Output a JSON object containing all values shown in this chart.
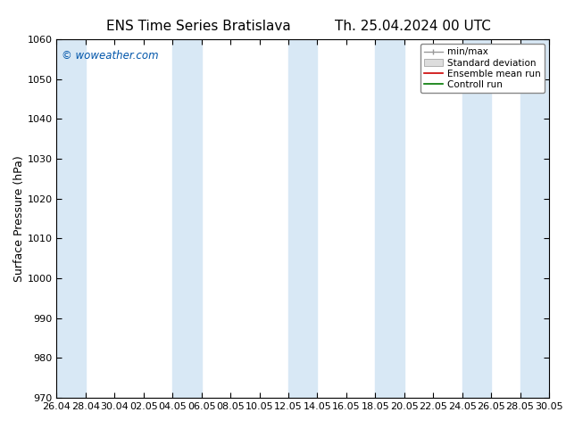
{
  "title_left": "ENS Time Series Bratislava",
  "title_right": "Th. 25.04.2024 00 UTC",
  "ylabel": "Surface Pressure (hPa)",
  "ylim": [
    970,
    1060
  ],
  "yticks": [
    970,
    980,
    990,
    1000,
    1010,
    1020,
    1030,
    1040,
    1050,
    1060
  ],
  "x_labels": [
    "26.04",
    "28.04",
    "30.04",
    "02.05",
    "04.05",
    "06.05",
    "08.05",
    "10.05",
    "12.05",
    "14.05",
    "16.05",
    "18.05",
    "20.05",
    "22.05",
    "24.05",
    "26.05",
    "28.05",
    "30.05"
  ],
  "watermark": "© woweather.com",
  "watermark_color": "#0055aa",
  "bg_color": "#ffffff",
  "plot_bg_color": "#ffffff",
  "band_color": "#d8e8f5",
  "band_indices": [
    0,
    4,
    8,
    12,
    14,
    16
  ],
  "legend_labels": [
    "min/max",
    "Standard deviation",
    "Ensemble mean run",
    "Controll run"
  ],
  "legend_colors_line": [
    "#999999",
    "#cccccc",
    "#cc0000",
    "#007700"
  ],
  "grid_color": "#cccccc",
  "tick_color": "#000000",
  "title_fontsize": 11,
  "tick_fontsize": 8,
  "ylabel_fontsize": 9,
  "legend_fontsize": 7.5
}
